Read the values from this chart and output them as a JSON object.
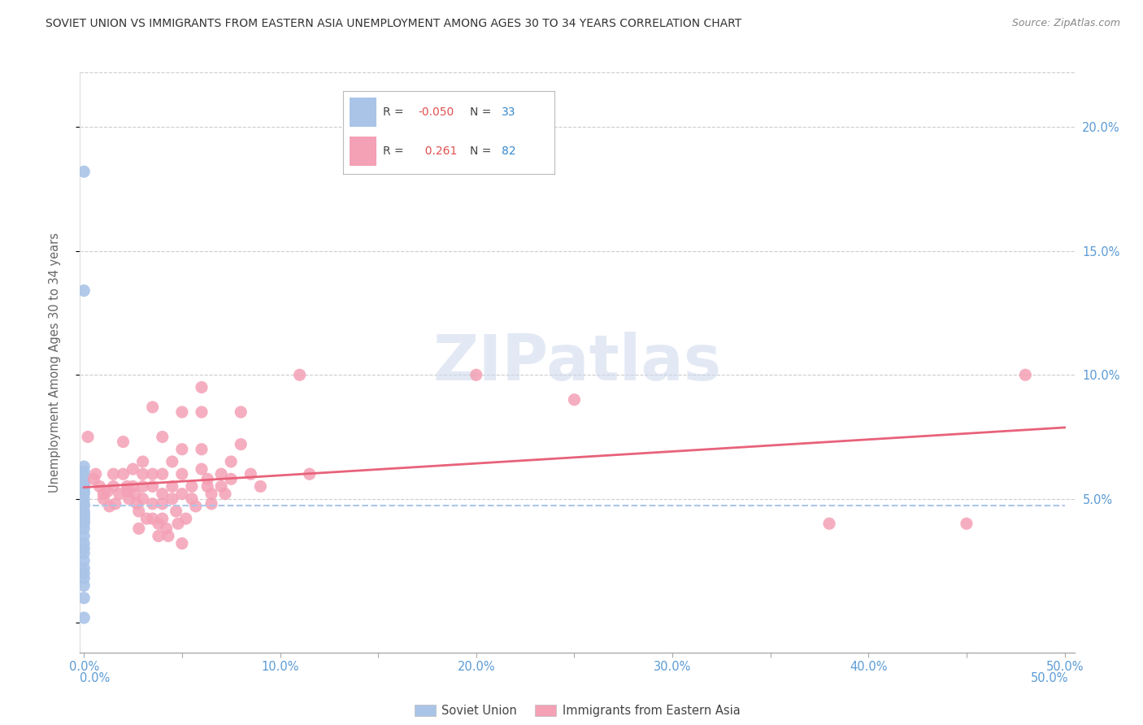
{
  "title": "SOVIET UNION VS IMMIGRANTS FROM EASTERN ASIA UNEMPLOYMENT AMONG AGES 30 TO 34 YEARS CORRELATION CHART",
  "source": "Source: ZipAtlas.com",
  "ylabel": "Unemployment Among Ages 30 to 34 years",
  "y_ticks": [
    0.0,
    0.05,
    0.1,
    0.15,
    0.2
  ],
  "y_tick_labels": [
    "",
    "5.0%",
    "10.0%",
    "15.0%",
    "20.0%"
  ],
  "x_ticks": [
    0.0,
    0.05,
    0.1,
    0.15,
    0.2,
    0.25,
    0.3,
    0.35,
    0.4,
    0.45,
    0.5
  ],
  "x_tick_labels_major": [
    0.0,
    0.1,
    0.2,
    0.3,
    0.4,
    0.5
  ],
  "xlim": [
    -0.002,
    0.505
  ],
  "ylim": [
    -0.012,
    0.222
  ],
  "soviet_color": "#aac4e8",
  "eastern_asia_color": "#f4a0b5",
  "soviet_line_color": "#aac4e8",
  "eastern_line_color": "#e8627a",
  "background_color": "#ffffff",
  "grid_color": "#cccccc",
  "title_color": "#333333",
  "axis_tick_color": "#5b9bd5",
  "soviet_points": [
    [
      0.0,
      0.182
    ],
    [
      0.0,
      0.134
    ],
    [
      0.0,
      0.063
    ],
    [
      0.0,
      0.061
    ],
    [
      0.0,
      0.059
    ],
    [
      0.0,
      0.057
    ],
    [
      0.0,
      0.057
    ],
    [
      0.0,
      0.056
    ],
    [
      0.0,
      0.055
    ],
    [
      0.0,
      0.054
    ],
    [
      0.0,
      0.053
    ],
    [
      0.0,
      0.052
    ],
    [
      0.0,
      0.05
    ],
    [
      0.0,
      0.048
    ],
    [
      0.0,
      0.047
    ],
    [
      0.0,
      0.045
    ],
    [
      0.0,
      0.044
    ],
    [
      0.0,
      0.043
    ],
    [
      0.0,
      0.042
    ],
    [
      0.0,
      0.041
    ],
    [
      0.0,
      0.04
    ],
    [
      0.0,
      0.038
    ],
    [
      0.0,
      0.035
    ],
    [
      0.0,
      0.032
    ],
    [
      0.0,
      0.03
    ],
    [
      0.0,
      0.028
    ],
    [
      0.0,
      0.025
    ],
    [
      0.0,
      0.022
    ],
    [
      0.0,
      0.02
    ],
    [
      0.0,
      0.018
    ],
    [
      0.0,
      0.015
    ],
    [
      0.0,
      0.01
    ],
    [
      0.0,
      0.002
    ]
  ],
  "eastern_points": [
    [
      0.002,
      0.075
    ],
    [
      0.005,
      0.058
    ],
    [
      0.006,
      0.06
    ],
    [
      0.008,
      0.055
    ],
    [
      0.01,
      0.052
    ],
    [
      0.01,
      0.05
    ],
    [
      0.012,
      0.053
    ],
    [
      0.013,
      0.047
    ],
    [
      0.015,
      0.06
    ],
    [
      0.015,
      0.055
    ],
    [
      0.016,
      0.048
    ],
    [
      0.018,
      0.052
    ],
    [
      0.02,
      0.073
    ],
    [
      0.02,
      0.06
    ],
    [
      0.022,
      0.055
    ],
    [
      0.022,
      0.053
    ],
    [
      0.023,
      0.05
    ],
    [
      0.025,
      0.062
    ],
    [
      0.025,
      0.055
    ],
    [
      0.026,
      0.052
    ],
    [
      0.027,
      0.048
    ],
    [
      0.028,
      0.045
    ],
    [
      0.028,
      0.038
    ],
    [
      0.03,
      0.065
    ],
    [
      0.03,
      0.06
    ],
    [
      0.03,
      0.055
    ],
    [
      0.03,
      0.05
    ],
    [
      0.032,
      0.042
    ],
    [
      0.035,
      0.087
    ],
    [
      0.035,
      0.06
    ],
    [
      0.035,
      0.055
    ],
    [
      0.035,
      0.048
    ],
    [
      0.035,
      0.042
    ],
    [
      0.038,
      0.04
    ],
    [
      0.038,
      0.035
    ],
    [
      0.04,
      0.075
    ],
    [
      0.04,
      0.06
    ],
    [
      0.04,
      0.052
    ],
    [
      0.04,
      0.048
    ],
    [
      0.04,
      0.042
    ],
    [
      0.042,
      0.038
    ],
    [
      0.043,
      0.035
    ],
    [
      0.045,
      0.065
    ],
    [
      0.045,
      0.055
    ],
    [
      0.045,
      0.05
    ],
    [
      0.047,
      0.045
    ],
    [
      0.048,
      0.04
    ],
    [
      0.05,
      0.085
    ],
    [
      0.05,
      0.07
    ],
    [
      0.05,
      0.06
    ],
    [
      0.05,
      0.052
    ],
    [
      0.05,
      0.032
    ],
    [
      0.052,
      0.042
    ],
    [
      0.055,
      0.055
    ],
    [
      0.055,
      0.05
    ],
    [
      0.057,
      0.047
    ],
    [
      0.06,
      0.095
    ],
    [
      0.06,
      0.085
    ],
    [
      0.06,
      0.07
    ],
    [
      0.06,
      0.062
    ],
    [
      0.063,
      0.058
    ],
    [
      0.063,
      0.055
    ],
    [
      0.065,
      0.052
    ],
    [
      0.065,
      0.048
    ],
    [
      0.07,
      0.06
    ],
    [
      0.07,
      0.055
    ],
    [
      0.072,
      0.052
    ],
    [
      0.075,
      0.065
    ],
    [
      0.075,
      0.058
    ],
    [
      0.08,
      0.085
    ],
    [
      0.08,
      0.072
    ],
    [
      0.085,
      0.06
    ],
    [
      0.09,
      0.055
    ],
    [
      0.11,
      0.1
    ],
    [
      0.115,
      0.06
    ],
    [
      0.2,
      0.1
    ],
    [
      0.25,
      0.09
    ],
    [
      0.38,
      0.04
    ],
    [
      0.45,
      0.04
    ],
    [
      0.48,
      0.1
    ]
  ],
  "soviet_R": -0.05,
  "eastern_R": 0.261
}
